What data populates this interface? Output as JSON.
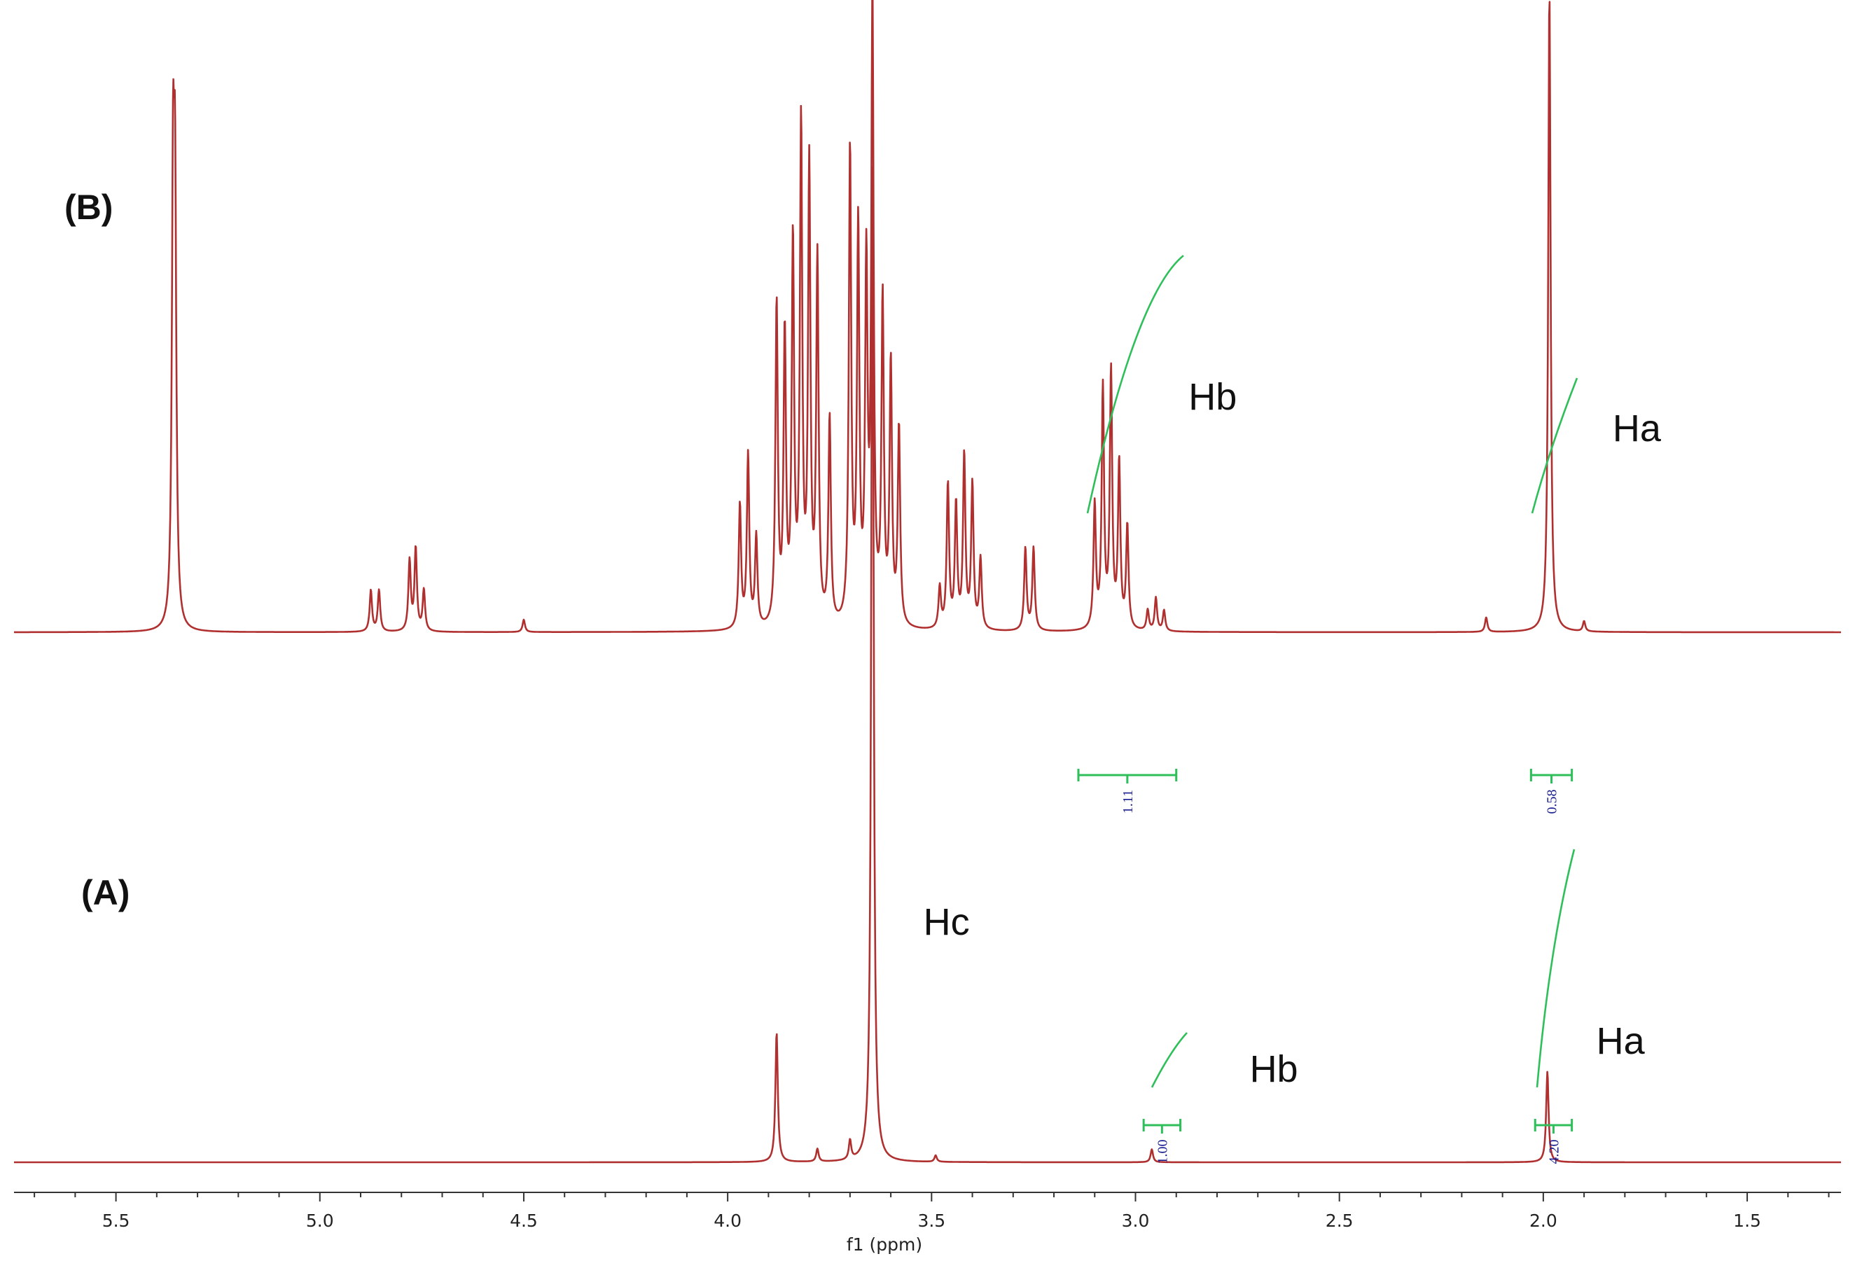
{
  "chart_data": {
    "type": "line",
    "xlabel": "f1 (ppm)",
    "xlim": [
      5.75,
      1.27
    ],
    "x_reversed": true,
    "xticks": [
      "5.5",
      "5.0",
      "4.5",
      "4.0",
      "3.5",
      "3.0",
      "2.5",
      "2.0",
      "1.5"
    ],
    "grid": false,
    "series": [
      {
        "name": "(B)",
        "color": "#b03030",
        "peaks_ppm_height": [
          [
            5.36,
            1.0
          ],
          [
            5.355,
            0.95
          ],
          [
            4.875,
            0.1
          ],
          [
            4.855,
            0.1
          ],
          [
            4.78,
            0.17
          ],
          [
            4.765,
            0.2
          ],
          [
            4.745,
            0.1
          ],
          [
            4.5,
            0.03
          ],
          [
            3.97,
            0.3
          ],
          [
            3.95,
            0.42
          ],
          [
            3.93,
            0.22
          ],
          [
            3.88,
            0.78
          ],
          [
            3.86,
            0.7
          ],
          [
            3.84,
            0.92
          ],
          [
            3.82,
            1.2
          ],
          [
            3.8,
            1.1
          ],
          [
            3.78,
            0.88
          ],
          [
            3.75,
            0.5
          ],
          [
            3.7,
            1.15
          ],
          [
            3.68,
            0.95
          ],
          [
            3.66,
            0.85
          ],
          [
            3.645,
            1.5
          ],
          [
            3.62,
            0.78
          ],
          [
            3.6,
            0.63
          ],
          [
            3.58,
            0.48
          ],
          [
            3.48,
            0.1
          ],
          [
            3.46,
            0.35
          ],
          [
            3.44,
            0.3
          ],
          [
            3.42,
            0.42
          ],
          [
            3.4,
            0.35
          ],
          [
            3.38,
            0.17
          ],
          [
            3.27,
            0.2
          ],
          [
            3.25,
            0.2
          ],
          [
            3.1,
            0.3
          ],
          [
            3.08,
            0.58
          ],
          [
            3.06,
            0.62
          ],
          [
            3.04,
            0.4
          ],
          [
            3.02,
            0.25
          ],
          [
            2.97,
            0.05
          ],
          [
            2.95,
            0.08
          ],
          [
            2.93,
            0.05
          ],
          [
            2.14,
            0.035
          ],
          [
            1.985,
            1.55
          ],
          [
            1.9,
            0.025
          ]
        ]
      },
      {
        "name": "(A)",
        "color": "#b03030",
        "peaks_ppm_height": [
          [
            3.88,
            0.2
          ],
          [
            3.78,
            0.02
          ],
          [
            3.7,
            0.03
          ],
          [
            3.645,
            1.57
          ],
          [
            3.49,
            0.01
          ],
          [
            2.96,
            0.02
          ],
          [
            1.99,
            0.14
          ]
        ]
      }
    ],
    "annotations": [
      {
        "text": "Hb",
        "x": 2.87,
        "series": "(B)"
      },
      {
        "text": "Ha",
        "x": 1.83,
        "series": "(B)"
      },
      {
        "text": "Hc",
        "x": 3.52,
        "series": "(A)"
      },
      {
        "text": "Hb",
        "x": 2.72,
        "series": "(A)"
      },
      {
        "text": "Ha",
        "x": 1.87,
        "series": "(A)"
      }
    ],
    "integrals": [
      {
        "series": "(B)",
        "from": 3.14,
        "to": 2.9,
        "value": "1.11"
      },
      {
        "series": "(B)",
        "from": 2.03,
        "to": 1.93,
        "value": "0.58"
      },
      {
        "series": "(A)",
        "from": 2.98,
        "to": 2.89,
        "value": "1.00"
      },
      {
        "series": "(A)",
        "from": 2.02,
        "to": 1.93,
        "value": "4.20"
      }
    ]
  }
}
